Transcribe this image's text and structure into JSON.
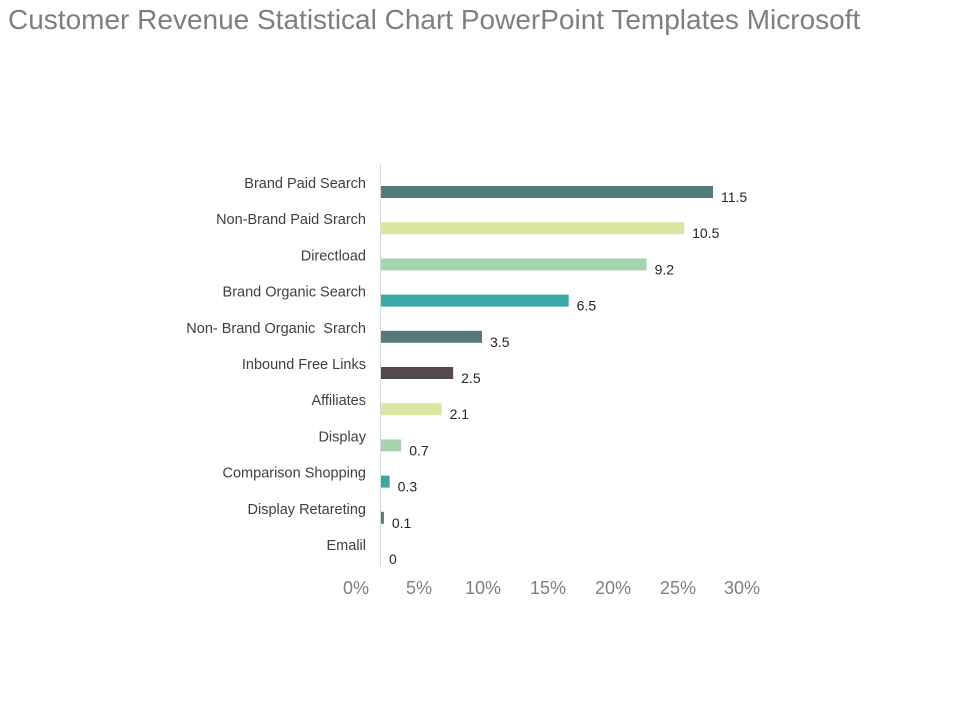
{
  "title": "Customer Revenue Statistical Chart PowerPoint Templates Microsoft",
  "chart_data": {
    "type": "bar",
    "orientation": "horizontal",
    "categories": [
      "Emalil",
      "Display Retareting",
      "Comparison Shopping",
      "Display",
      "Affiliates",
      "Inbound Free Links",
      "Non- Brand Organic  Srarch",
      "Brand Organic Search",
      "Directload",
      "Non-Brand Paid Srarch",
      "Brand Paid Search"
    ],
    "values": [
      0,
      0.1,
      0.3,
      0.7,
      2.1,
      2.5,
      3.5,
      6.5,
      9.2,
      10.5,
      11.5
    ],
    "data_labels": [
      "0",
      "0.1",
      "0.3",
      "0.7",
      "2.1",
      "2.5",
      "3.5",
      "6.5",
      "9.2",
      "10.5",
      "11.5"
    ],
    "colors": [
      "#d9e7a0",
      "#547a7d",
      "#3aa9a6",
      "#a6d4ad",
      "#d9e7a0",
      "#544a4c",
      "#547a7d",
      "#3aa9a6",
      "#a6d4ad",
      "#d9e7a0",
      "#547a7d"
    ],
    "xlim": [
      0,
      28
    ],
    "x_ticks": [
      "0%",
      "5%",
      "10%",
      "15%",
      "20%",
      "25%",
      "30%"
    ],
    "xlabel": "",
    "ylabel": "",
    "grid": false,
    "legend": "none"
  }
}
